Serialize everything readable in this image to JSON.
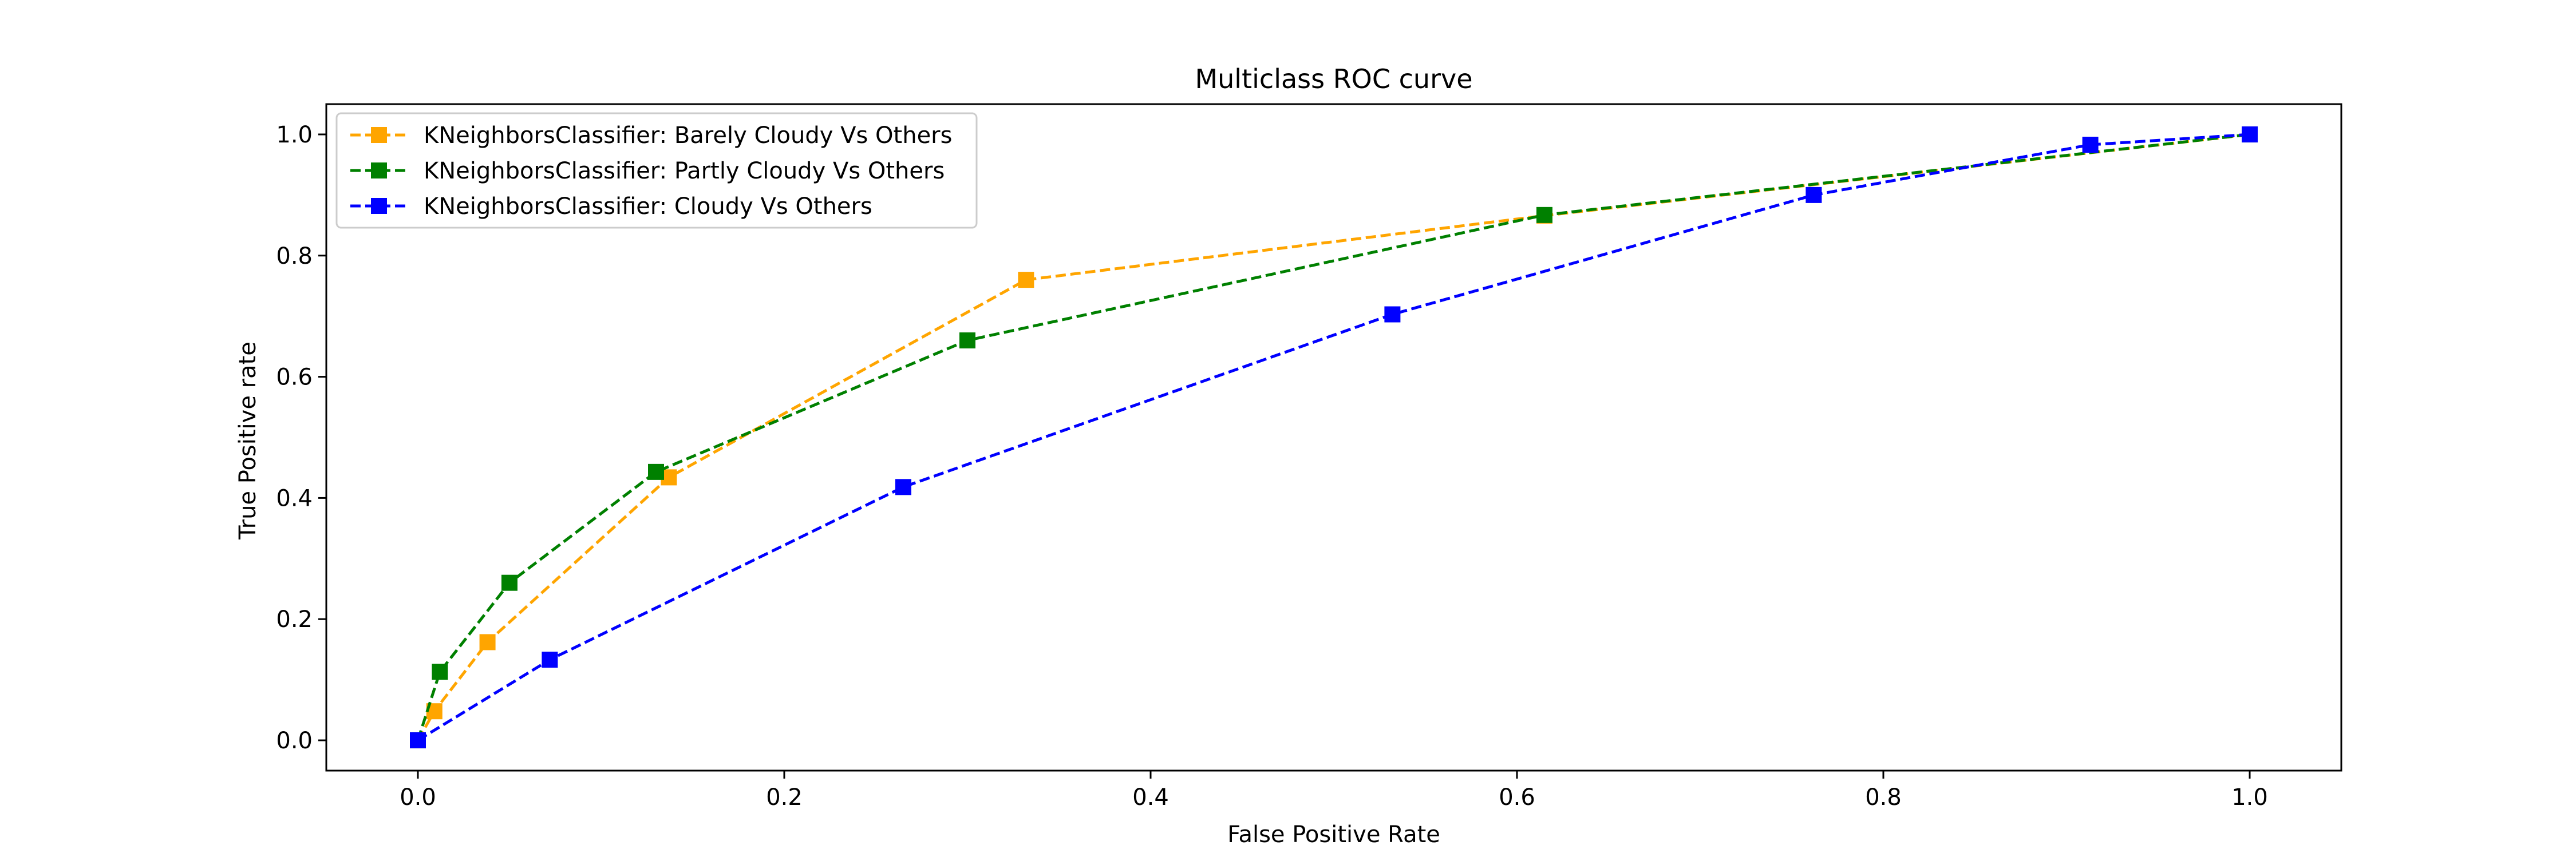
{
  "chart_data": {
    "type": "line",
    "title": "Multiclass ROC curve",
    "xlabel": "False Positive Rate",
    "ylabel": "True Positive rate",
    "xlim": [
      -0.05,
      1.05
    ],
    "ylim": [
      -0.05,
      1.05
    ],
    "xticks": [
      0.0,
      0.2,
      0.4,
      0.6,
      0.8,
      1.0
    ],
    "yticks": [
      0.0,
      0.2,
      0.4,
      0.6,
      0.8,
      1.0
    ],
    "xtick_labels": [
      "0.0",
      "0.2",
      "0.4",
      "0.6",
      "0.8",
      "1.0"
    ],
    "ytick_labels": [
      "0.0",
      "0.2",
      "0.4",
      "0.6",
      "0.8",
      "1.0"
    ],
    "grid": false,
    "legend_position": "upper-left",
    "line_style": "dashed",
    "marker": "square",
    "series": [
      {
        "name": "KNeighborsClassifier: Barely Cloudy Vs Others",
        "color": "#ffa500",
        "x": [
          0.0,
          0.009,
          0.038,
          0.137,
          0.332,
          0.615,
          1.0
        ],
        "y": [
          0.0,
          0.048,
          0.162,
          0.434,
          0.76,
          0.866,
          1.0
        ]
      },
      {
        "name": "KNeighborsClassifier: Partly Cloudy Vs Others",
        "color": "#008000",
        "x": [
          0.0,
          0.012,
          0.05,
          0.13,
          0.3,
          0.615,
          1.0
        ],
        "y": [
          0.0,
          0.113,
          0.26,
          0.443,
          0.66,
          0.867,
          1.0
        ]
      },
      {
        "name": "KNeighborsClassifier: Cloudy Vs Others",
        "color": "#0000ff",
        "x": [
          0.0,
          0.072,
          0.265,
          0.532,
          0.762,
          0.913,
          1.0
        ],
        "y": [
          0.0,
          0.133,
          0.418,
          0.703,
          0.9,
          0.983,
          1.0
        ]
      }
    ]
  }
}
